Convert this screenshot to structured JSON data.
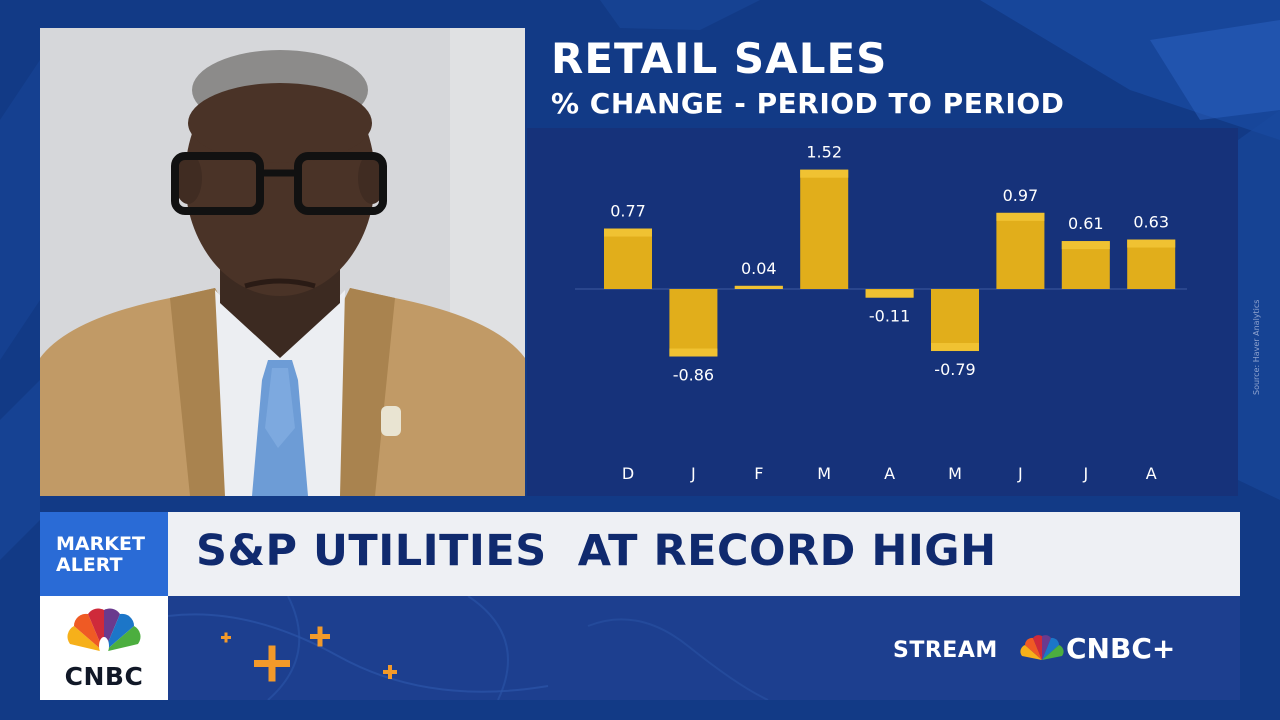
{
  "colors": {
    "background": "#123a86",
    "chart_panel": "#16327a",
    "bar": "#e1ae1b",
    "headline": "#102a6e",
    "alert": "#2a6bd6"
  },
  "chart": {
    "title": "RETAIL SALES",
    "subtitle": "% CHANGE - PERIOD TO PERIOD",
    "source": "Source: Haver Analytics"
  },
  "chart_data": {
    "type": "bar",
    "title": "RETAIL SALES",
    "subtitle": "% CHANGE - PERIOD TO PERIOD",
    "categories": [
      "D",
      "J",
      "F",
      "M",
      "A",
      "M",
      "J",
      "J",
      "A"
    ],
    "values": [
      0.77,
      -0.86,
      0.04,
      1.52,
      -0.11,
      -0.79,
      0.97,
      0.61,
      0.63
    ],
    "value_labels": [
      "0.77",
      "-0.86",
      "0.04",
      "1.52",
      "-0.11",
      "-0.79",
      "0.97",
      "0.61",
      "0.63"
    ],
    "xlabel": "",
    "ylabel": "",
    "ylim": [
      -2.2,
      2.2
    ],
    "grid": false,
    "legend": "none"
  },
  "banner": {
    "alert_line1": "MARKET",
    "alert_line2": "ALERT",
    "headline": "S&P UTILITIES  AT RECORD HIGH"
  },
  "footer": {
    "logo_text": "CNBC",
    "stream_label": "STREAM",
    "stream_brand": "CNBC+"
  },
  "icons": [
    "peacock-logo-icon",
    "plus-sign-icon",
    "peacock-small-icon"
  ]
}
